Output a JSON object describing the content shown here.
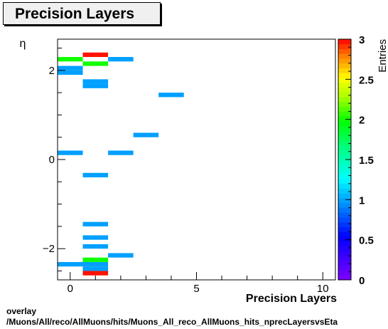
{
  "title": "Precision Layers",
  "footer": {
    "line1": "overlay",
    "line2": "/Muons/All/reco/AllMuons/hits/Muons_All_reco_AllMuons_hits_nprecLayersvsEta"
  },
  "chart_data": {
    "type": "heatmap",
    "xlabel": "Precision Layers",
    "ylabel": "η",
    "zlabel": "Entries",
    "xlim": [
      -0.5,
      10.5
    ],
    "ylim": [
      -2.7,
      2.7
    ],
    "zlim": [
      0,
      3
    ],
    "x_ticks": [
      0,
      5,
      10
    ],
    "y_ticks": [
      -2,
      0,
      2
    ],
    "z_ticks": [
      0,
      0.5,
      1,
      1.5,
      2,
      2.5,
      3
    ],
    "x_bin_width": 1,
    "y_bin_width": 0.1,
    "cells": [
      {
        "x": 0,
        "y": 2.25,
        "z": 2
      },
      {
        "x": 0,
        "y": 2.05,
        "z": 1
      },
      {
        "x": 0,
        "y": 1.95,
        "z": 1
      },
      {
        "x": 0,
        "y": 0.15,
        "z": 1
      },
      {
        "x": 0,
        "y": -2.35,
        "z": 1
      },
      {
        "x": 1,
        "y": 2.35,
        "z": 3
      },
      {
        "x": 1,
        "y": 2.15,
        "z": 2
      },
      {
        "x": 1,
        "y": 1.75,
        "z": 1
      },
      {
        "x": 1,
        "y": 1.65,
        "z": 1
      },
      {
        "x": 1,
        "y": -0.35,
        "z": 1
      },
      {
        "x": 1,
        "y": -1.45,
        "z": 1
      },
      {
        "x": 1,
        "y": -1.75,
        "z": 1
      },
      {
        "x": 1,
        "y": -1.95,
        "z": 1
      },
      {
        "x": 1,
        "y": -2.25,
        "z": 2
      },
      {
        "x": 1,
        "y": -2.35,
        "z": 1
      },
      {
        "x": 1,
        "y": -2.45,
        "z": 1
      },
      {
        "x": 1,
        "y": -2.55,
        "z": 3
      },
      {
        "x": 2,
        "y": 2.25,
        "z": 1
      },
      {
        "x": 2,
        "y": 0.15,
        "z": 1
      },
      {
        "x": 2,
        "y": -2.15,
        "z": 1
      },
      {
        "x": 3,
        "y": 0.55,
        "z": 1
      },
      {
        "x": 4,
        "y": 1.45,
        "z": 1
      }
    ],
    "grid": false,
    "palette_low": "#7f00ff",
    "palette_high": "#ff0000"
  }
}
